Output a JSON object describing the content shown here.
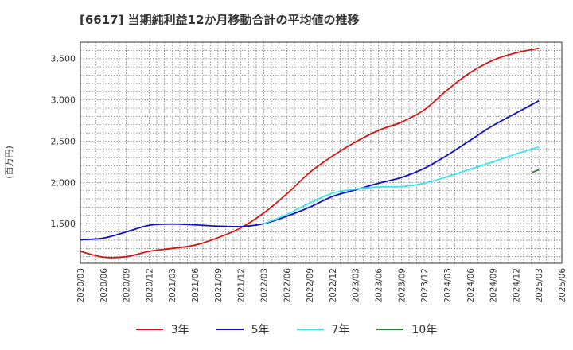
{
  "title": "[6617]  当期純利益12か月移動合計の平均値の推移",
  "y_unit_label": "(百万円)",
  "chart_data": {
    "type": "line",
    "x": [
      "2020/03",
      "2020/06",
      "2020/09",
      "2020/12",
      "2021/03",
      "2021/06",
      "2021/09",
      "2021/12",
      "2022/03",
      "2022/06",
      "2022/09",
      "2022/12",
      "2023/03",
      "2023/06",
      "2023/09",
      "2023/12",
      "2024/03",
      "2024/06",
      "2024/09",
      "2024/12",
      "2025/03",
      "2025/06"
    ],
    "x_tick_labels": [
      "2020/03",
      "2020/06",
      "2020/09",
      "2020/12",
      "2021/03",
      "2021/06",
      "2021/09",
      "2021/12",
      "2022/03",
      "2022/06",
      "2022/09",
      "2022/12",
      "2023/03",
      "2023/06",
      "2023/09",
      "2023/12",
      "2024/03",
      "2024/06",
      "2024/09",
      "2024/12",
      "2025/03",
      "2025/06"
    ],
    "y_ticks": [
      1500,
      2000,
      2500,
      3000,
      3500
    ],
    "y_tick_labels": [
      "1,500",
      "2,000",
      "2,500",
      "3,000",
      "3,500"
    ],
    "ylim": [
      1020,
      3700
    ],
    "grid": true,
    "legend_position": "bottom",
    "series": [
      {
        "name": "3年",
        "color": "#dd1111",
        "values": [
          1165,
          1095,
          1100,
          1165,
          1200,
          1240,
          1330,
          1450,
          1630,
          1860,
          2120,
          2320,
          2490,
          2630,
          2730,
          2880,
          3120,
          3330,
          3480,
          3570,
          3625,
          null
        ]
      },
      {
        "name": "5年",
        "color": "#1010cc",
        "values": [
          1305,
          1325,
          1400,
          1480,
          1495,
          1485,
          1470,
          1465,
          1500,
          1590,
          1700,
          1830,
          1910,
          1990,
          2060,
          2170,
          2330,
          2510,
          2690,
          2840,
          2990,
          null
        ]
      },
      {
        "name": "7年",
        "color": "#33e8f0",
        "values": [
          null,
          null,
          null,
          null,
          null,
          null,
          null,
          null,
          1500,
          1610,
          1750,
          1870,
          1920,
          1945,
          1950,
          1990,
          2070,
          2160,
          2250,
          2345,
          2430,
          null
        ]
      },
      {
        "name": "10年",
        "color": "#228833",
        "values": [
          null,
          null,
          null,
          null,
          null,
          null,
          null,
          null,
          null,
          null,
          null,
          null,
          null,
          null,
          null,
          null,
          null,
          null,
          null,
          null,
          2155,
          null
        ],
        "partial": {
          "x": [
            "2024/12+",
            "2025/03"
          ],
          "values": [
            2120,
            2155
          ]
        }
      }
    ]
  }
}
